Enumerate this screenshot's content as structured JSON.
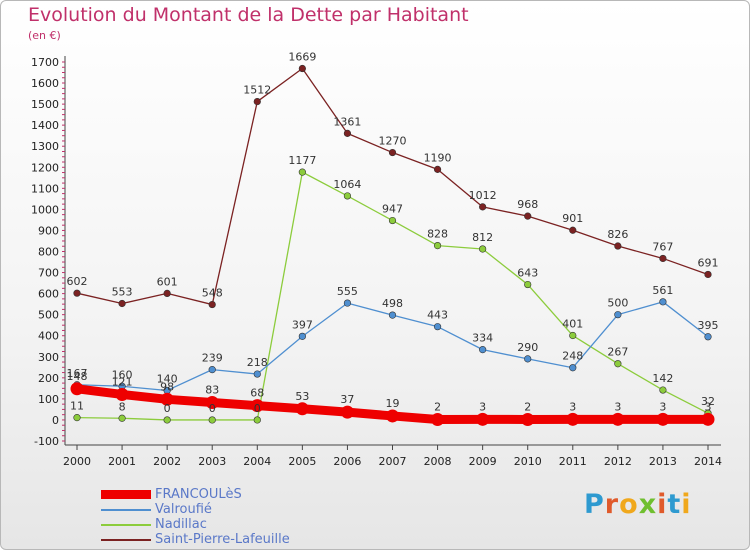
{
  "header": {
    "title": "Evolution du Montant de la Dette par Habitant",
    "subtitle": "(en €)"
  },
  "logo": {
    "text": "Proxiti",
    "colors": [
      "#2e9ad0",
      "#e05a2b",
      "#f0a81c",
      "#6fbf2f",
      "#e05a2b",
      "#2e9ad0",
      "#f0a81c"
    ]
  },
  "chart_data": {
    "type": "line",
    "title": "Evolution du Montant de la Dette par Habitant",
    "subtitle": "(en €)",
    "x": [
      2000,
      2001,
      2002,
      2003,
      2004,
      2005,
      2006,
      2007,
      2008,
      2009,
      2010,
      2011,
      2012,
      2013,
      2014
    ],
    "ylim": [
      -100,
      1700
    ],
    "yticks": [
      -100,
      0,
      100,
      200,
      300,
      400,
      500,
      600,
      700,
      800,
      900,
      1000,
      1100,
      1200,
      1300,
      1400,
      1500,
      1600,
      1700
    ],
    "grid": false,
    "legend": "bottom-left",
    "series": [
      {
        "name": "FRANCOULèS",
        "color": "#ee0000",
        "values": [
          148,
          121,
          98,
          83,
          68,
          53,
          37,
          19,
          2,
          3,
          2,
          3,
          3,
          3,
          3
        ]
      },
      {
        "name": "Valroufié",
        "color": "#4f8fd0",
        "values": [
          167,
          160,
          140,
          239,
          218,
          397,
          555,
          498,
          443,
          334,
          290,
          248,
          500,
          561,
          395
        ]
      },
      {
        "name": "Nadillac",
        "color": "#8ccc3c",
        "values": [
          11,
          8,
          0,
          0,
          0,
          1177,
          1064,
          947,
          828,
          812,
          643,
          401,
          267,
          142,
          32
        ]
      },
      {
        "name": "Saint-Pierre-Lafeuille",
        "color": "#7b2222",
        "values": [
          602,
          553,
          601,
          548,
          1512,
          1669,
          1361,
          1270,
          1190,
          1012,
          968,
          901,
          826,
          767,
          691
        ]
      }
    ]
  }
}
